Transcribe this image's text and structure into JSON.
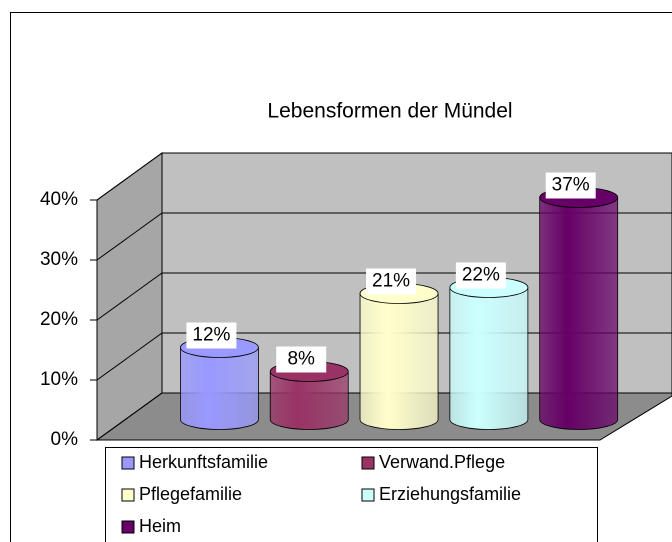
{
  "chart_data": {
    "type": "cylinder3d",
    "title": "Lebensformen der Mündel",
    "series": [
      {
        "name": "Herkunftsfamilie",
        "color": "#9999ff",
        "values": [
          12
        ],
        "value_labels": [
          "12%"
        ]
      },
      {
        "name": "Verwand.Pflege",
        "color": "#993366",
        "values": [
          8
        ],
        "value_labels": [
          "8%"
        ]
      },
      {
        "name": "Pflegefamilie",
        "color": "#ffffcc",
        "values": [
          21
        ],
        "value_labels": [
          "21%"
        ]
      },
      {
        "name": "Erziehungsfamilie",
        "color": "#ccffff",
        "values": [
          22
        ],
        "value_labels": [
          "22%"
        ]
      },
      {
        "name": "Heim",
        "color": "#660066",
        "values": [
          37
        ],
        "value_labels": [
          "37%"
        ]
      }
    ],
    "ylim": [
      0,
      40
    ],
    "yticks": [
      {
        "value": 0,
        "label": "0%"
      },
      {
        "value": 10,
        "label": "10%"
      },
      {
        "value": 20,
        "label": "20%"
      },
      {
        "value": 30,
        "label": "30%"
      },
      {
        "value": 40,
        "label": "40%"
      }
    ],
    "grid": true,
    "legend": "bottom"
  }
}
